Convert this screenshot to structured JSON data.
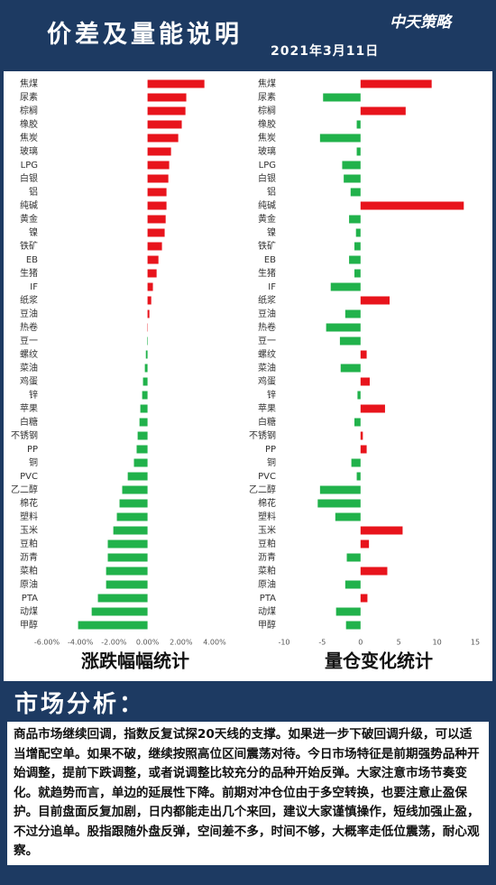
{
  "header": {
    "title": "价差及量能说明",
    "date": "2021年3月11日",
    "logo": "中天策略"
  },
  "chart_data": [
    {
      "type": "bar",
      "orientation": "horizontal",
      "title": "涨跌幅幅统计",
      "categories": [
        "焦煤",
        "尿素",
        "棕榈",
        "橡胶",
        "焦炭",
        "玻璃",
        "LPG",
        "白银",
        "铝",
        "纯碱",
        "黄金",
        "镍",
        "铁矿",
        "EB",
        "生猪",
        "IF",
        "纸浆",
        "豆油",
        "热卷",
        "豆一",
        "螺纹",
        "菜油",
        "鸡蛋",
        "锌",
        "苹果",
        "白糖",
        "不锈钢",
        "PP",
        "铜",
        "PVC",
        "乙二醇",
        "棉花",
        "塑料",
        "玉米",
        "豆粕",
        "沥青",
        "菜粕",
        "原油",
        "PTA",
        "动煤",
        "甲醇"
      ],
      "values": [
        3.39,
        2.31,
        2.26,
        2.04,
        1.83,
        1.4,
        1.29,
        1.24,
        1.13,
        1.13,
        1.08,
        1.02,
        0.86,
        0.65,
        0.54,
        0.32,
        0.22,
        0.11,
        0.02,
        -0.03,
        -0.1,
        -0.16,
        -0.27,
        -0.32,
        -0.43,
        -0.48,
        -0.59,
        -0.65,
        -0.81,
        -1.18,
        -1.51,
        -1.67,
        -1.83,
        -2.04,
        -2.37,
        -2.37,
        -2.47,
        -2.47,
        -2.96,
        -3.33,
        -4.14
      ],
      "xlim": [
        -6,
        4
      ],
      "xticks": [
        {
          "value": -6,
          "label": "-6.00%"
        },
        {
          "value": -4,
          "label": "-4.00%"
        },
        {
          "value": -2,
          "label": "-2.00%"
        },
        {
          "value": 0,
          "label": "0.00%"
        },
        {
          "value": 2,
          "label": "2.00%"
        },
        {
          "value": 4,
          "label": "4.00%"
        }
      ],
      "positive_color": "#e8141c",
      "negative_color": "#21b24b"
    },
    {
      "type": "bar",
      "orientation": "horizontal",
      "title": "量仓变化统计",
      "categories": [
        "焦煤",
        "尿素",
        "棕榈",
        "橡胶",
        "焦炭",
        "玻璃",
        "LPG",
        "白银",
        "铝",
        "纯碱",
        "黄金",
        "镍",
        "铁矿",
        "EB",
        "生猪",
        "IF",
        "纸浆",
        "豆油",
        "热卷",
        "豆一",
        "螺纹",
        "菜油",
        "鸡蛋",
        "锌",
        "苹果",
        "白糖",
        "不锈钢",
        "PP",
        "铜",
        "PVC",
        "乙二醇",
        "棉花",
        "塑料",
        "玉米",
        "豆粕",
        "沥青",
        "菜粕",
        "原油",
        "PTA",
        "动煤",
        "甲醇"
      ],
      "values": [
        9.3,
        -4.9,
        5.9,
        -0.5,
        -5.3,
        -0.5,
        -2.4,
        -2.2,
        -1.3,
        13.5,
        -1.5,
        -0.6,
        -0.8,
        -1.5,
        -0.8,
        -3.9,
        3.8,
        -2,
        -4.5,
        -2.7,
        0.8,
        -2.6,
        1.2,
        -0.4,
        3.2,
        -0.8,
        0.3,
        0.8,
        -1.2,
        -0.5,
        -5.3,
        -5.6,
        -3.3,
        5.5,
        1.1,
        -1.8,
        3.5,
        -2,
        0.9,
        -3.2,
        -1.9
      ],
      "xlim": [
        -10,
        15
      ],
      "xticks": [
        -10,
        -5,
        0,
        5,
        10,
        15
      ],
      "positive_color": "#e8141c",
      "negative_color": "#21b24b"
    }
  ],
  "analysis": {
    "heading": "市场分析：",
    "text": "商品市场继续回调，指数反复试探20天线的支撑。如果进一步下破回调升级，可以适当增配空单。如果不破，继续按照高位区间震荡对待。今日市场特征是前期强势品种开始调整，提前下跌调整，或者说调整比较充分的品种开始反弹。大家注意市场节奏变化。就趋势而言，单边的延展性下降。前期对冲仓位由于多空转换，也要注意止盈保护。目前盘面反复加剧，日内都能走出几个来回，建议大家谨慎操作，短线加强止盈，不过分追单。股指跟随外盘反弹，空间差不多，时间不够，大概率走低位震荡，耐心观察。"
  }
}
